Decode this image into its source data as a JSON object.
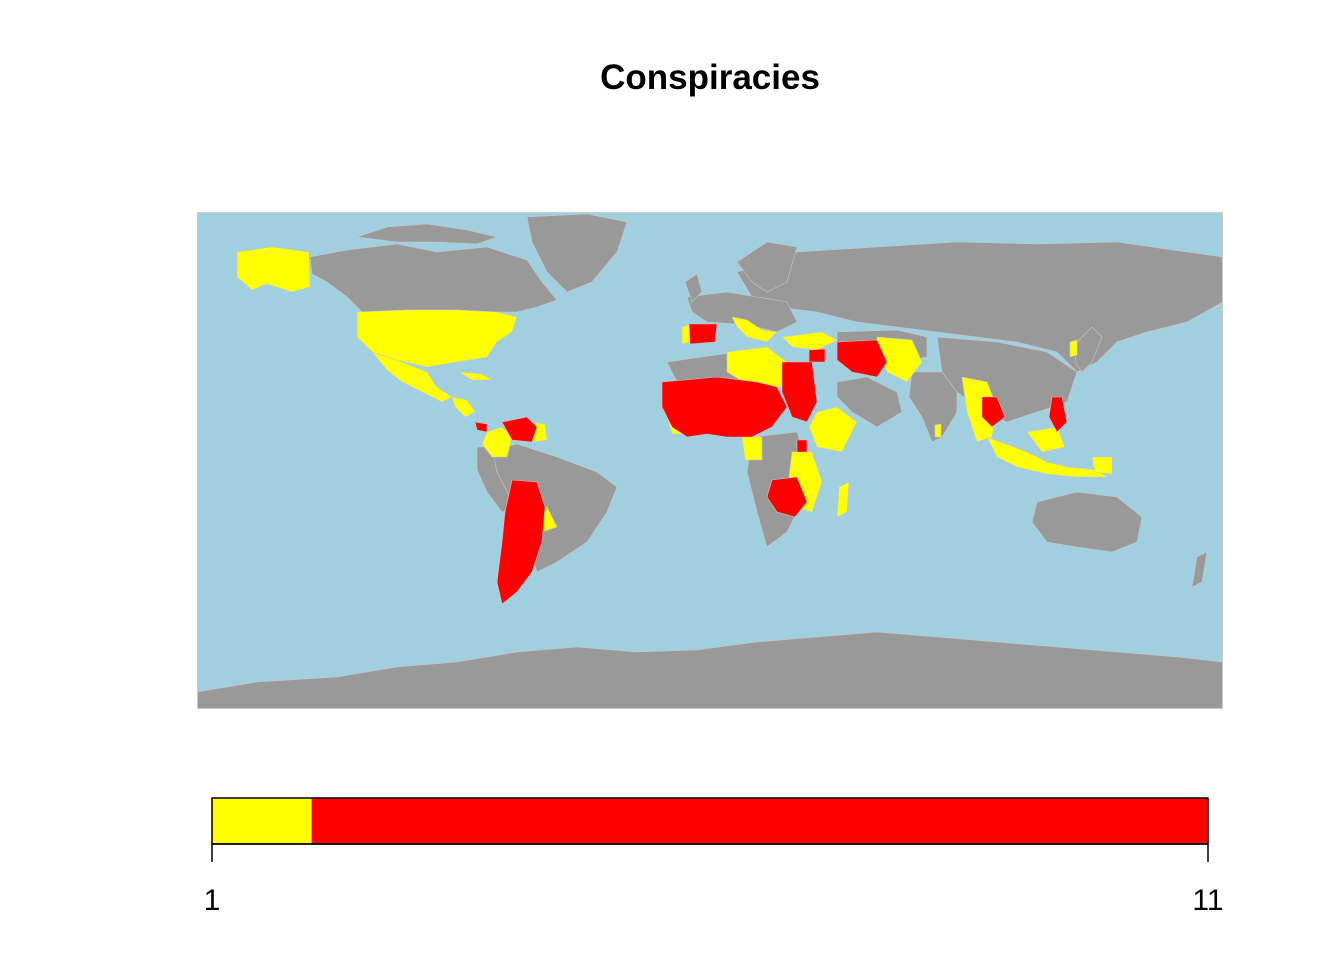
{
  "title": "Conspiracies",
  "colors": {
    "ocean": "#a0cfe0",
    "land_no_data": "#999999",
    "low": "#ffff00",
    "high": "#ff0000",
    "border": "#d0d0d0"
  },
  "legend": {
    "min_label": "1",
    "max_label": "11",
    "breaks": [
      1,
      2,
      11
    ],
    "bin_colors": [
      "#ffff00",
      "#ff0000"
    ]
  },
  "regions_low": [
    "United States",
    "Mexico",
    "Guatemala",
    "Honduras",
    "Nicaragua",
    "Cuba",
    "Haiti",
    "Colombia",
    "Guyana",
    "Suriname",
    "Paraguay",
    "Uruguay",
    "Portugal",
    "Algeria",
    "Libya",
    "Italy",
    "Greece",
    "Turkey",
    "Lebanon",
    "Afghanistan",
    "Pakistan",
    "Yemen",
    "Somalia",
    "Ethiopia",
    "Kenya",
    "Tanzania",
    "Mozambique",
    "Madagascar",
    "Mali border West Africa",
    "Ghana",
    "Togo",
    "Central African Republic",
    "Rwanda",
    "Uganda",
    "Myanmar",
    "Indonesia",
    "Malaysia",
    "Papua New Guinea",
    "Sri Lanka",
    "South Korea",
    "Lesotho"
  ],
  "regions_high": [
    "Venezuela",
    "Panama",
    "Bolivia",
    "Argentina",
    "Chile",
    "Spain",
    "Syria",
    "Iran",
    "Mauritania",
    "Senegal",
    "Guinea",
    "Sierra Leone",
    "Liberia",
    "Ivory Coast",
    "Burkina Faso",
    "Niger",
    "Nigeria",
    "Chad",
    "Sudan",
    "Egypt",
    "Eritrea",
    "Zambia",
    "Zimbabwe",
    "Thailand",
    "Cambodia",
    "Philippines"
  ]
}
